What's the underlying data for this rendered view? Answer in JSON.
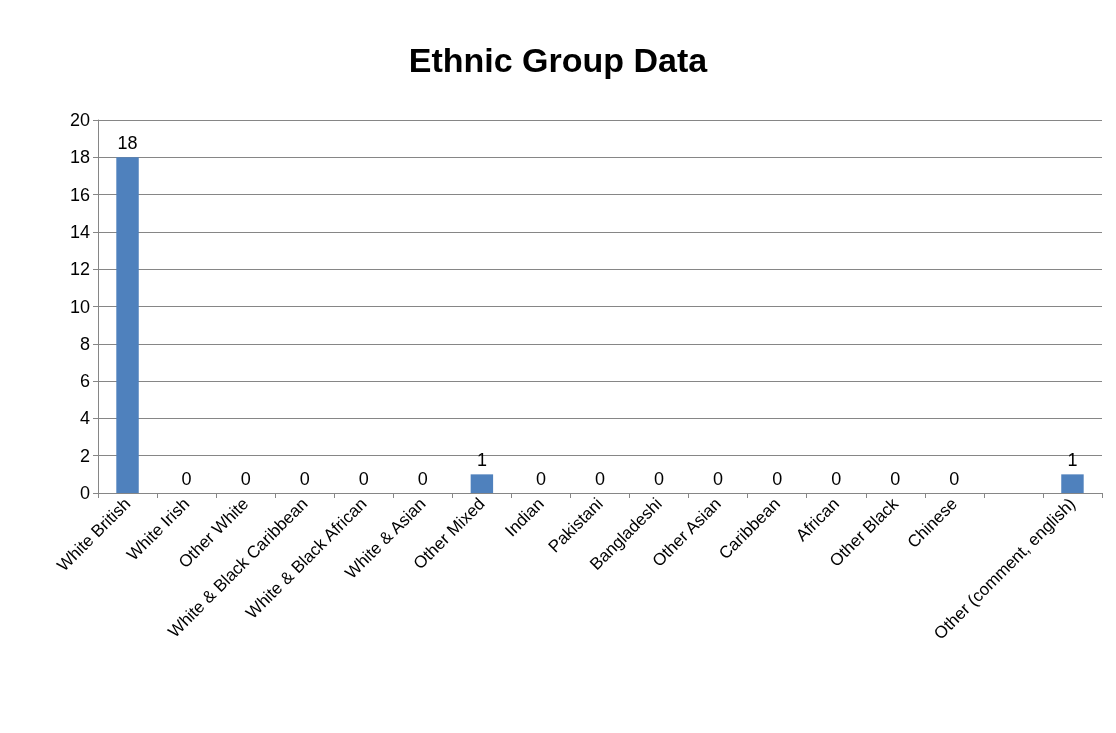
{
  "chart_data": {
    "type": "bar",
    "title": "Ethnic Group Data",
    "categories": [
      "White British",
      "White Irish",
      "Other White",
      "White & Black Caribbean",
      "White & Black African",
      "White & Asian",
      "Other Mixed",
      "Indian",
      "Pakistani",
      "Bangladeshi",
      "Other Asian",
      "Caribbean",
      "African",
      "Other Black",
      "Chinese",
      null,
      "Other (comment, english)"
    ],
    "values": [
      18,
      0,
      0,
      0,
      0,
      0,
      1,
      0,
      0,
      0,
      0,
      0,
      0,
      0,
      0,
      null,
      1
    ],
    "color": "#4f81bd",
    "ylim": [
      0,
      20
    ],
    "yticks": [
      0,
      2,
      4,
      6,
      8,
      10,
      12,
      14,
      16,
      18,
      20
    ],
    "grid": "y",
    "data_labels": true
  }
}
